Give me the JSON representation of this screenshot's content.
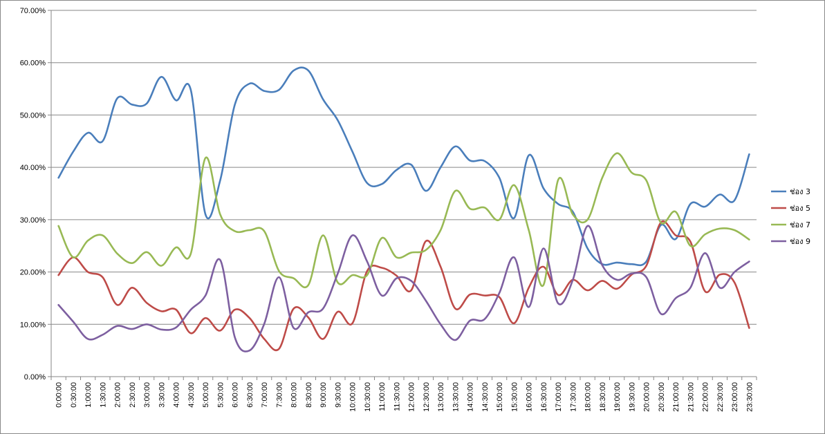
{
  "chart_data": {
    "type": "line",
    "smooth": true,
    "grid": "horizontal",
    "legend_position": "right",
    "ylim": [
      0,
      0.7
    ],
    "y_ticks": [
      "0.00%",
      "10.00%",
      "20.00%",
      "30.00%",
      "40.00%",
      "50.00%",
      "60.00%",
      "70.00%"
    ],
    "x": [
      "0:00:00",
      "0:30:00",
      "1:00:00",
      "1:30:00",
      "2:00:00",
      "2:30:00",
      "3:00:00",
      "3:30:00",
      "4:00:00",
      "4:30:00",
      "5:00:00",
      "5:30:00",
      "6:00:00",
      "6:30:00",
      "7:00:00",
      "7:30:00",
      "8:00:00",
      "8:30:00",
      "9:00:00",
      "9:30:00",
      "10:00:00",
      "10:30:00",
      "11:00:00",
      "11:30:00",
      "12:00:00",
      "12:30:00",
      "13:00:00",
      "13:30:00",
      "14:00:00",
      "14:30:00",
      "15:00:00",
      "15:30:00",
      "16:00:00",
      "16:30:00",
      "17:00:00",
      "17:30:00",
      "18:00:00",
      "18:30:00",
      "19:00:00",
      "19:30:00",
      "20:00:00",
      "20:30:00",
      "21:00:00",
      "21:30:00",
      "22:00:00",
      "22:30:00",
      "23:00:00",
      "23:30:00"
    ],
    "series": [
      {
        "name": "ช่อง 3",
        "color": "#4a7ebb",
        "values": [
          0.38,
          0.43,
          0.466,
          0.45,
          0.532,
          0.52,
          0.522,
          0.573,
          0.528,
          0.548,
          0.31,
          0.375,
          0.52,
          0.56,
          0.546,
          0.548,
          0.585,
          0.585,
          0.53,
          0.49,
          0.43,
          0.37,
          0.368,
          0.395,
          0.405,
          0.355,
          0.4,
          0.44,
          0.413,
          0.412,
          0.38,
          0.303,
          0.423,
          0.36,
          0.33,
          0.315,
          0.245,
          0.215,
          0.218,
          0.215,
          0.22,
          0.29,
          0.263,
          0.33,
          0.325,
          0.348,
          0.337,
          0.425
        ]
      },
      {
        "name": "ช่อง 5",
        "color": "#be4b48",
        "values": [
          0.194,
          0.228,
          0.2,
          0.19,
          0.137,
          0.17,
          0.141,
          0.125,
          0.128,
          0.083,
          0.112,
          0.088,
          0.128,
          0.112,
          0.072,
          0.053,
          0.13,
          0.113,
          0.072,
          0.124,
          0.102,
          0.202,
          0.208,
          0.193,
          0.165,
          0.259,
          0.21,
          0.13,
          0.157,
          0.155,
          0.152,
          0.102,
          0.17,
          0.21,
          0.156,
          0.185,
          0.165,
          0.183,
          0.168,
          0.195,
          0.212,
          0.295,
          0.27,
          0.258,
          0.163,
          0.195,
          0.18,
          0.093
        ]
      },
      {
        "name": "ช่อง 7",
        "color": "#98b954",
        "values": [
          0.288,
          0.228,
          0.26,
          0.27,
          0.235,
          0.217,
          0.238,
          0.212,
          0.247,
          0.235,
          0.418,
          0.31,
          0.278,
          0.28,
          0.278,
          0.202,
          0.188,
          0.175,
          0.27,
          0.18,
          0.194,
          0.194,
          0.265,
          0.228,
          0.237,
          0.242,
          0.28,
          0.355,
          0.321,
          0.323,
          0.3,
          0.366,
          0.28,
          0.175,
          0.376,
          0.31,
          0.3,
          0.38,
          0.427,
          0.39,
          0.375,
          0.294,
          0.315,
          0.25,
          0.272,
          0.283,
          0.28,
          0.262
        ]
      },
      {
        "name": "ช่อง 9",
        "color": "#7d5fa0",
        "values": [
          0.137,
          0.105,
          0.072,
          0.08,
          0.097,
          0.091,
          0.1,
          0.09,
          0.094,
          0.128,
          0.155,
          0.223,
          0.075,
          0.05,
          0.101,
          0.19,
          0.093,
          0.123,
          0.13,
          0.197,
          0.27,
          0.22,
          0.155,
          0.188,
          0.183,
          0.145,
          0.1,
          0.07,
          0.107,
          0.11,
          0.16,
          0.228,
          0.133,
          0.245,
          0.14,
          0.185,
          0.288,
          0.213,
          0.185,
          0.197,
          0.19,
          0.12,
          0.15,
          0.17,
          0.236,
          0.17,
          0.2,
          0.22
        ]
      }
    ]
  }
}
